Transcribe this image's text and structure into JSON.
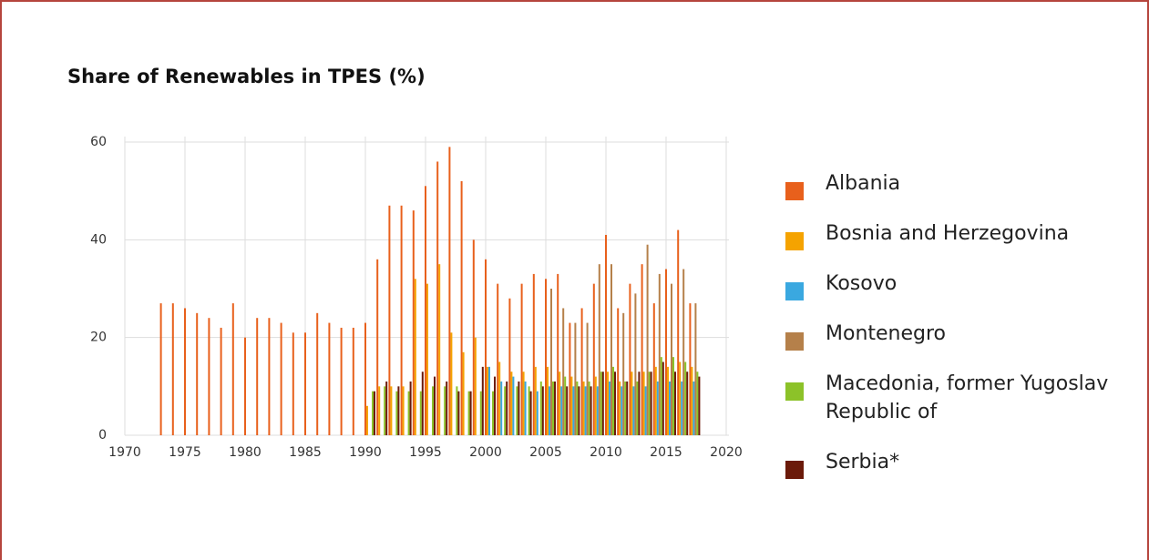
{
  "chart_data": {
    "type": "bar",
    "title": "Share of Renewables in TPES (%)",
    "x": [
      1973,
      1974,
      1975,
      1976,
      1977,
      1978,
      1979,
      1980,
      1981,
      1982,
      1983,
      1984,
      1985,
      1986,
      1987,
      1988,
      1989,
      1990,
      1991,
      1992,
      1993,
      1994,
      1995,
      1996,
      1997,
      1998,
      1999,
      2000,
      2001,
      2002,
      2003,
      2004,
      2005,
      2006,
      2007,
      2008,
      2009,
      2010,
      2011,
      2012,
      2013,
      2014,
      2015,
      2016,
      2017
    ],
    "xlim": [
      1970,
      2020
    ],
    "xticks": [
      1970,
      1975,
      1980,
      1985,
      1990,
      1995,
      2000,
      2005,
      2010,
      2015,
      2020
    ],
    "ylim": [
      0,
      60
    ],
    "yticks": [
      0,
      20,
      40,
      60
    ],
    "grid": true,
    "series": [
      {
        "name": "Albania",
        "color": "#e8601c",
        "values": [
          27,
          27,
          26,
          25,
          24,
          22,
          27,
          20,
          24,
          24,
          23,
          21,
          21,
          25,
          23,
          22,
          22,
          23,
          36,
          47,
          47,
          46,
          51,
          56,
          59,
          52,
          40,
          36,
          31,
          28,
          31,
          33,
          32,
          33,
          23,
          26,
          31,
          41,
          26,
          31,
          35,
          27,
          34,
          42,
          27
        ]
      },
      {
        "name": "Bosnia and Herzegovina",
        "color": "#f5a300",
        "values": [
          null,
          null,
          null,
          null,
          null,
          null,
          null,
          null,
          null,
          null,
          null,
          null,
          null,
          null,
          null,
          null,
          null,
          6,
          10,
          10,
          10,
          32,
          31,
          35,
          21,
          17,
          20,
          14,
          15,
          13,
          13,
          14,
          14,
          13,
          12,
          11,
          12,
          13,
          11,
          13,
          13,
          14,
          14,
          15,
          14
        ]
      },
      {
        "name": "Kosovo",
        "color": "#3aa8e0",
        "values": [
          null,
          null,
          null,
          null,
          null,
          null,
          null,
          null,
          null,
          null,
          null,
          null,
          null,
          null,
          null,
          null,
          null,
          null,
          null,
          null,
          null,
          null,
          null,
          null,
          null,
          null,
          null,
          14,
          11,
          12,
          11,
          9,
          10,
          10,
          10,
          10,
          10,
          11,
          10,
          10,
          10,
          11,
          11,
          11,
          11
        ]
      },
      {
        "name": "Montenegro",
        "color": "#b5804a",
        "values": [
          null,
          null,
          null,
          null,
          null,
          null,
          null,
          null,
          null,
          null,
          null,
          null,
          null,
          null,
          null,
          null,
          null,
          null,
          null,
          null,
          null,
          null,
          null,
          null,
          null,
          null,
          null,
          null,
          null,
          null,
          null,
          null,
          30,
          26,
          23,
          23,
          35,
          35,
          25,
          29,
          39,
          33,
          31,
          34,
          27
        ]
      },
      {
        "name": "Macedonia, former Yugoslav Republic of",
        "color": "#8cc229",
        "values": [
          null,
          null,
          null,
          null,
          null,
          null,
          null,
          null,
          null,
          null,
          null,
          null,
          null,
          null,
          null,
          null,
          null,
          9,
          10,
          9,
          9,
          9,
          10,
          10,
          10,
          9,
          9,
          9,
          10,
          10,
          10,
          11,
          11,
          12,
          11,
          11,
          13,
          14,
          11,
          11,
          13,
          16,
          16,
          15,
          13
        ]
      },
      {
        "name": "Serbia*",
        "color": "#6b1a0a",
        "values": [
          null,
          null,
          null,
          null,
          null,
          null,
          null,
          null,
          null,
          null,
          null,
          null,
          null,
          null,
          null,
          null,
          null,
          9,
          11,
          10,
          11,
          13,
          12,
          11,
          9,
          9,
          14,
          12,
          11,
          11,
          9,
          10,
          11,
          10,
          10,
          10,
          13,
          13,
          11,
          13,
          13,
          15,
          13,
          13,
          12
        ]
      }
    ]
  }
}
